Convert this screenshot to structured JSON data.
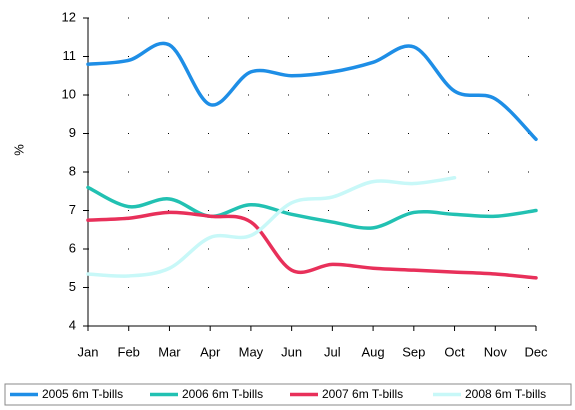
{
  "chart_data": {
    "type": "line",
    "y_label": "%",
    "categories": [
      "Jan",
      "Feb",
      "Mar",
      "Apr",
      "May",
      "Jun",
      "Jul",
      "Aug",
      "Sep",
      "Oct",
      "Nov",
      "Dec"
    ],
    "series": [
      {
        "name": "2005 6m T-bills",
        "color": "#1e8ee6",
        "values": [
          10.8,
          10.9,
          11.3,
          9.75,
          10.6,
          10.5,
          10.6,
          10.85,
          11.25,
          10.1,
          9.9,
          8.85
        ]
      },
      {
        "name": "2006 6m T-bills",
        "color": "#22c1b2",
        "values": [
          7.6,
          7.1,
          7.3,
          6.85,
          7.15,
          6.9,
          6.7,
          6.55,
          6.95,
          6.9,
          6.85,
          7.0
        ]
      },
      {
        "name": "2007 6m T-bills",
        "color": "#e8305a",
        "values": [
          6.75,
          6.8,
          6.95,
          6.85,
          6.7,
          5.45,
          5.6,
          5.5,
          5.45,
          5.4,
          5.35,
          5.25
        ]
      },
      {
        "name": "2008 6m T-bills",
        "color": "#c8f8f8",
        "values": [
          5.35,
          5.3,
          5.5,
          6.3,
          6.35,
          7.2,
          7.35,
          7.75,
          7.7,
          7.85,
          null,
          null
        ]
      }
    ],
    "ylim": [
      4,
      12
    ],
    "yticks": [
      4,
      5,
      6,
      7,
      8,
      9,
      10,
      11,
      12
    ],
    "grid": true,
    "legend": "bottom"
  }
}
